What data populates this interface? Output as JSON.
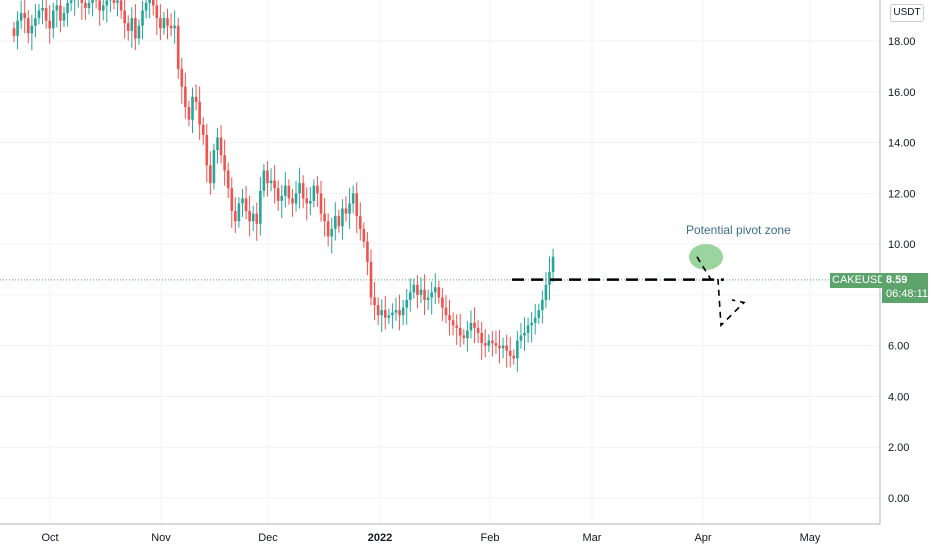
{
  "unit_label": "USDT",
  "price_line": {
    "symbol": "CAKEUSDT",
    "price": "8.59",
    "countdown": "06:48:11"
  },
  "annotation": {
    "text": "Potential pivot zone"
  },
  "colors": {
    "up": "#26a69a",
    "down": "#ef5350",
    "price_label": "#5ca36c",
    "pivot_zone": "#7fca85"
  },
  "chart_data": {
    "type": "candlestick",
    "title": "",
    "xlabel": "",
    "ylabel": "",
    "ylim": [
      -1.0,
      20.0
    ],
    "y_ticks": [
      "0.00",
      "2.00",
      "4.00",
      "6.00",
      "8.00",
      "10.00",
      "12.00",
      "14.00",
      "16.00",
      "18.00"
    ],
    "x_ticks": [
      "Oct",
      "Nov",
      "Dec",
      "2022",
      "Feb",
      "Mar",
      "Apr",
      "May"
    ],
    "grid": true,
    "close_path_daily_approx": [
      18.2,
      18.8,
      19.1,
      18.9,
      18.3,
      18.6,
      18.9,
      19.2,
      19.3,
      18.8,
      18.5,
      19.2,
      19.4,
      18.8,
      19.1,
      19.5,
      19.6,
      19.7,
      19.9,
      19.5,
      19.3,
      19.5,
      19.7,
      19.6,
      19.2,
      19.4,
      19.6,
      19.7,
      19.5,
      19.6,
      19.2,
      18.7,
      18.4,
      18.9,
      18.1,
      18.6,
      19.2,
      19.5,
      19.8,
      19.4,
      18.9,
      18.5,
      18.9,
      18.6,
      18.5,
      18.6,
      16.9,
      16.2,
      15.4,
      14.9,
      15.8,
      15.6,
      14.7,
      14.3,
      13.1,
      12.4,
      13.7,
      14.2,
      13.5,
      12.9,
      12.2,
      11.3,
      10.9,
      11.6,
      11.8,
      11.3,
      10.9,
      11.2,
      10.8,
      12.1,
      12.9,
      12.4,
      12.5,
      12.2,
      11.7,
      11.9,
      12.3,
      11.8,
      11.6,
      12.0,
      12.4,
      11.8,
      11.6,
      11.7,
      12.3,
      12.0,
      11.2,
      10.9,
      10.3,
      10.6,
      11.1,
      10.7,
      11.4,
      11.2,
      11.6,
      12.0,
      11.1,
      10.6,
      10.1,
      9.3,
      7.9,
      7.6,
      7.2,
      7.4,
      7.1,
      7.2,
      7.3,
      7.4,
      7.2,
      7.5,
      7.8,
      8.1,
      8.4,
      8.0,
      8.2,
      7.8,
      7.9,
      8.1,
      8.3,
      7.9,
      7.5,
      7.2,
      7.0,
      6.8,
      6.7,
      6.4,
      6.3,
      6.6,
      6.9,
      6.7,
      6.5,
      6.1,
      6.0,
      6.2,
      6.1,
      6.0,
      5.9,
      6.0,
      5.8,
      5.6,
      5.5,
      6.2,
      6.4,
      6.5,
      6.8,
      6.9,
      7.1,
      7.4,
      7.8,
      8.4,
      8.9,
      9.5
    ],
    "current_price": 8.59,
    "pivot_level": 8.6,
    "projection_path": [
      [
        9.5,
        8.6
      ],
      [
        8.6,
        8.6
      ],
      [
        8.6,
        6.8
      ],
      [
        6.8,
        7.7
      ],
      [
        7.7,
        7.7
      ]
    ]
  }
}
